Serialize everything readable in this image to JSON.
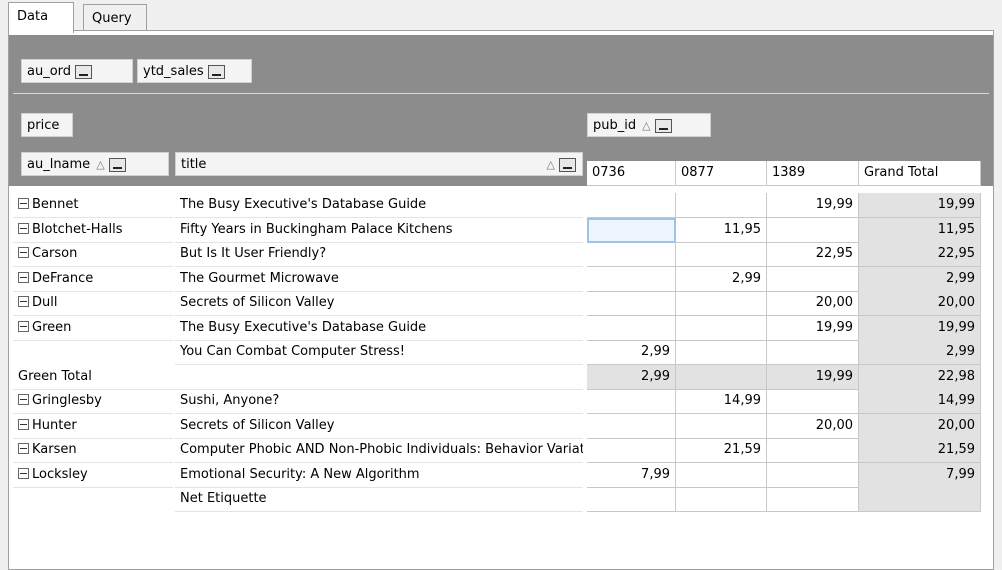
{
  "tabs": [
    "Data",
    "Query"
  ],
  "filter_fields": [
    "au_ord",
    "ytd_sales"
  ],
  "data_field": "price",
  "column_field": "pub_id",
  "row_fields": [
    "au_lname",
    "title"
  ],
  "columns": [
    "0736",
    "0877",
    "1389",
    "Grand Total"
  ],
  "table": {
    "rows": [
      {
        "au_lname": "Bennet",
        "title": "The Busy Executive's Database Guide",
        "cells": [
          null,
          null,
          "19,99",
          "19,99"
        ]
      },
      {
        "au_lname": "Blotchet-Halls",
        "title": "Fifty Years in Buckingham Palace Kitchens",
        "cells": [
          null,
          "11,95",
          null,
          "11,95"
        ]
      },
      {
        "au_lname": "Carson",
        "title": "But Is It User Friendly?",
        "cells": [
          null,
          null,
          "22,95",
          "22,95"
        ]
      },
      {
        "au_lname": "DeFrance",
        "title": "The Gourmet Microwave",
        "cells": [
          null,
          "2,99",
          null,
          "2,99"
        ]
      },
      {
        "au_lname": "Dull",
        "title": "Secrets of Silicon Valley",
        "cells": [
          null,
          null,
          "20,00",
          "20,00"
        ]
      },
      {
        "au_lname": "Green",
        "title": "The Busy Executive's Database Guide",
        "cells": [
          null,
          null,
          "19,99",
          "19,99"
        ]
      },
      {
        "title": "You Can Combat Computer Stress!",
        "cells": [
          "2,99",
          null,
          null,
          "2,99"
        ]
      },
      {
        "total": "Green Total",
        "cells": [
          "2,99",
          null,
          "19,99",
          "22,98"
        ]
      },
      {
        "au_lname": "Gringlesby",
        "title": "Sushi, Anyone?",
        "cells": [
          null,
          "14,99",
          null,
          "14,99"
        ]
      },
      {
        "au_lname": "Hunter",
        "title": "Secrets of Silicon Valley",
        "cells": [
          null,
          null,
          "20,00",
          "20,00"
        ]
      },
      {
        "au_lname": "Karsen",
        "title": "Computer Phobic AND Non-Phobic Individuals: Behavior Variations",
        "cells": [
          null,
          "21,59",
          null,
          "21,59"
        ]
      },
      {
        "au_lname": "Locksley",
        "title": "Emotional Security: A New Algorithm",
        "cells": [
          "7,99",
          null,
          null,
          "7,99"
        ]
      },
      {
        "title": "Net Etiquette",
        "cells": [
          null,
          null,
          null,
          null
        ]
      }
    ]
  }
}
